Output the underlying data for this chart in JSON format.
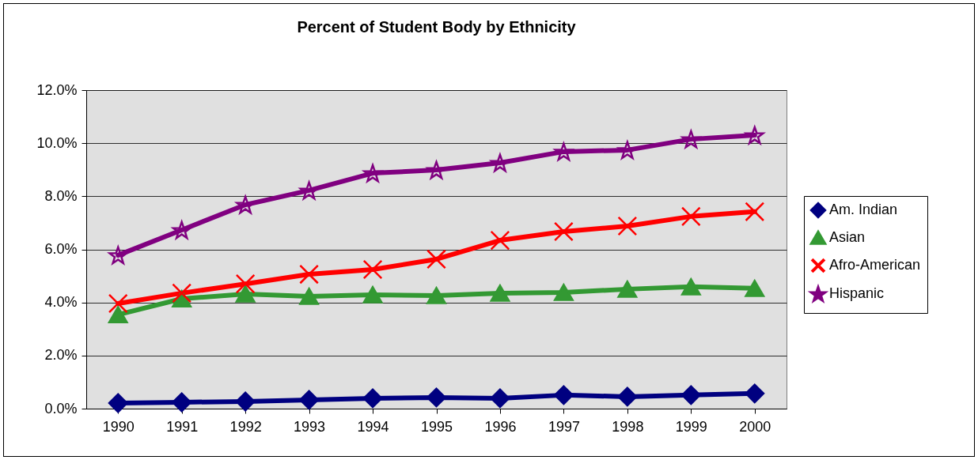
{
  "chart_data": {
    "type": "line",
    "title": "Percent of Student Body by Ethnicity",
    "categories": [
      "1990",
      "1991",
      "1992",
      "1993",
      "1994",
      "1995",
      "1996",
      "1997",
      "1998",
      "1999",
      "2000"
    ],
    "series": [
      {
        "name": "Am. Indian",
        "color": "#000080",
        "marker": "diamond",
        "values": [
          0.21,
          0.24,
          0.27,
          0.33,
          0.39,
          0.42,
          0.39,
          0.51,
          0.45,
          0.51,
          0.57
        ]
      },
      {
        "name": "Asian",
        "color": "#339933",
        "marker": "triangle",
        "values": [
          3.54,
          4.14,
          4.32,
          4.23,
          4.29,
          4.26,
          4.35,
          4.38,
          4.5,
          4.59,
          4.53
        ]
      },
      {
        "name": "Afro-American",
        "color": "#ff0000",
        "marker": "cross",
        "values": [
          3.96,
          4.35,
          4.7,
          5.06,
          5.24,
          5.63,
          6.34,
          6.67,
          6.88,
          7.24,
          7.42
        ]
      },
      {
        "name": "Hispanic",
        "color": "#800080",
        "marker": "star",
        "values": [
          5.78,
          6.73,
          7.68,
          8.22,
          8.87,
          8.99,
          9.26,
          9.68,
          9.74,
          10.15,
          10.3
        ]
      }
    ],
    "ylim": [
      0,
      12
    ],
    "yticks": [
      {
        "value": 0,
        "label": "0.0%"
      },
      {
        "value": 2,
        "label": "2.0%"
      },
      {
        "value": 4,
        "label": "4.0%"
      },
      {
        "value": 6,
        "label": "6.0%"
      },
      {
        "value": 8,
        "label": "8.0%"
      },
      {
        "value": 10,
        "label": "10.0%"
      },
      {
        "value": 12,
        "label": "12.0%"
      }
    ],
    "grid": "y",
    "legend": "right"
  }
}
